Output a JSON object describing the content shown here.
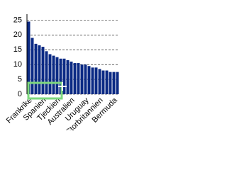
{
  "chart_data": {
    "type": "bar",
    "categories": [
      "Frankrike",
      null,
      null,
      null,
      "Spanien",
      null,
      null,
      null,
      "Tjeckien",
      null,
      null,
      null,
      "Australien",
      null,
      null,
      null,
      "Uruguay",
      null,
      null,
      null,
      "Storbritannien",
      null,
      null,
      null,
      "Bermuda",
      null
    ],
    "values": [
      24.5,
      19,
      17,
      16.5,
      16,
      14.5,
      13.5,
      13,
      12.5,
      12,
      12,
      11.5,
      11,
      10.5,
      10.5,
      10,
      10,
      9.5,
      9,
      9,
      8.5,
      8,
      8,
      7.5,
      7.5,
      7.5
    ],
    "color": "#0b2a84",
    "ylim": [
      0,
      27
    ],
    "yticks": [
      0,
      5,
      10,
      15,
      20,
      25
    ],
    "grid": true
  }
}
